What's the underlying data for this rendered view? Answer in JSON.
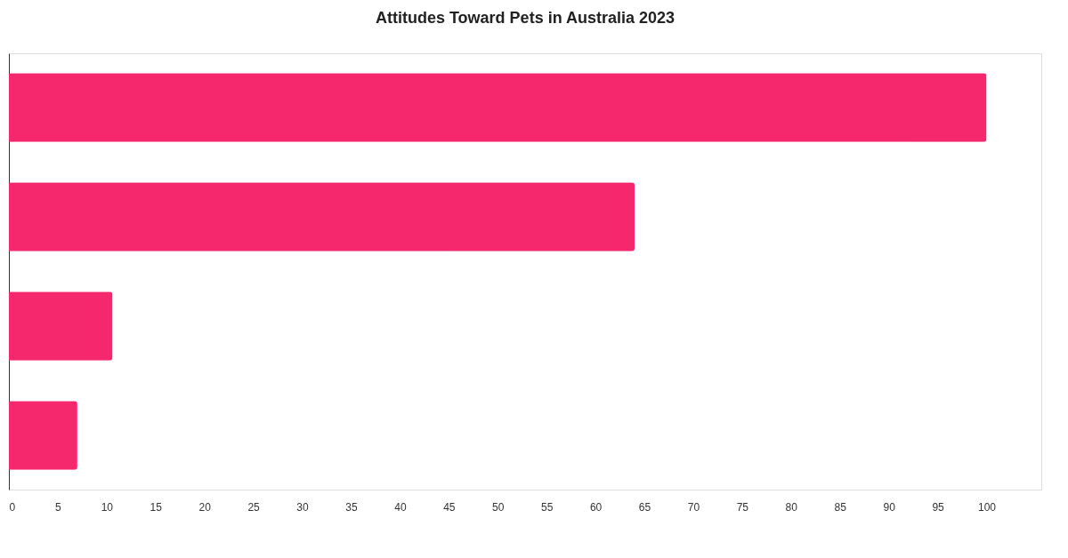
{
  "chart_data": {
    "type": "bar",
    "orientation": "horizontal",
    "title": "Attitudes Toward Pets in Australia 2023",
    "categories": [
      null,
      null,
      null,
      null
    ],
    "values": [
      100,
      64,
      10.6,
      7
    ],
    "color": "#f5286e",
    "xlim": [
      0,
      105.6
    ],
    "xticks": [
      0,
      5,
      10,
      15,
      20,
      25,
      30,
      35,
      40,
      45,
      50,
      55,
      60,
      65,
      70,
      75,
      80,
      85,
      90,
      95,
      100
    ],
    "grid": false,
    "tick_labels": "x"
  }
}
